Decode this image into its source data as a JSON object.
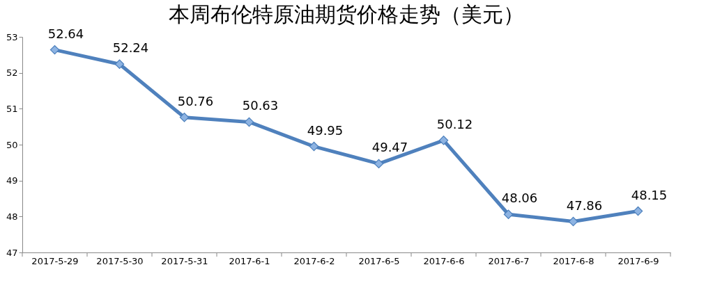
{
  "chart_data": {
    "type": "line",
    "title": "本周布伦特原油期货价格走势（美元）",
    "categories": [
      "2017-5-29",
      "2017-5-30",
      "2017-5-31",
      "2017-6-1",
      "2017-6-2",
      "2017-6-5",
      "2017-6-6",
      "2017-6-7",
      "2017-6-8",
      "2017-6-9"
    ],
    "series": [
      {
        "color": "#4f81bd",
        "values": [
          52.64,
          52.24,
          50.76,
          50.63,
          49.95,
          49.47,
          50.12,
          48.06,
          47.86,
          48.15
        ]
      }
    ],
    "ylim": [
      47,
      53
    ],
    "yticks": [
      47,
      48,
      49,
      50,
      51,
      52,
      53
    ],
    "grid": false,
    "marker": "diamond",
    "line_style": "solid",
    "data_labels": true
  }
}
